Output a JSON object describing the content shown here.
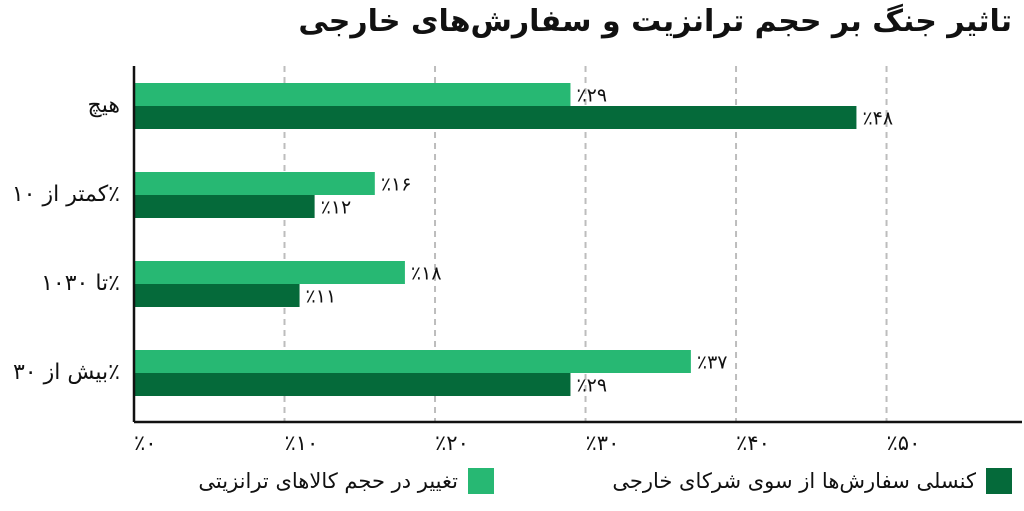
{
  "chart_data": {
    "type": "bar",
    "orientation": "horizontal",
    "title": "تاثیر جنگ بر حجم ترانزیت و سفارش‌های خارجی",
    "categories": [
      "هیچ",
      "کمتر از ۱۰٪",
      "۱۰تا ۳۰٪",
      "بیش از ۳۰٪"
    ],
    "series": [
      {
        "name": "تغییر در حجم کالاهای ترانزیتی",
        "color": "#27b873",
        "values": [
          29,
          16,
          18,
          37
        ],
        "labels": [
          "٪۲۹",
          "٪۱۶",
          "٪۱۸",
          "٪۳۷"
        ]
      },
      {
        "name": "کنسلی سفارش‌ها از سوی شرکای خارجی",
        "color": "#056a3a",
        "values": [
          48,
          12,
          11,
          29
        ],
        "labels": [
          "٪۴۸",
          "٪۱۲",
          "٪۱۱",
          "٪۲۹"
        ]
      }
    ],
    "xticks": [
      0,
      10,
      20,
      30,
      40,
      50
    ],
    "xtick_labels": [
      "٪۰",
      "٪۱۰",
      "٪۲۰",
      "٪۳۰",
      "٪۴۰",
      "٪۵۰"
    ],
    "xlim": [
      0,
      59
    ],
    "grid": "vertical-dashed",
    "legend_position": "bottom"
  }
}
